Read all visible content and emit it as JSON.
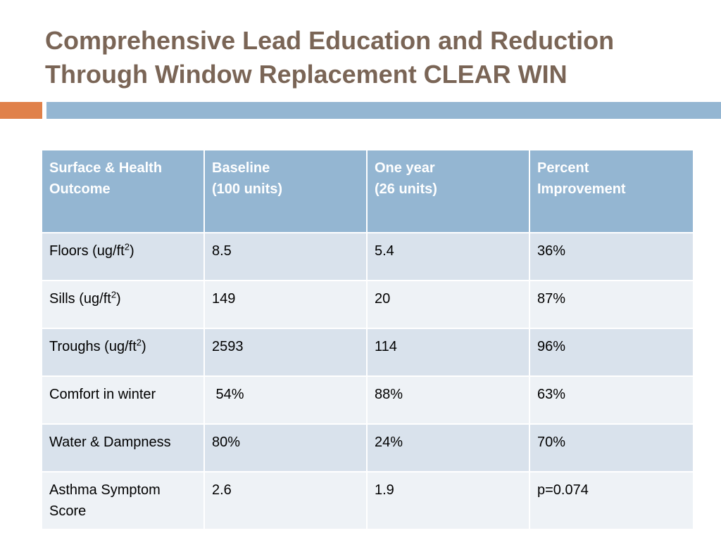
{
  "slide": {
    "title_lines": [
      "Comprehensive Lead Education and Reduction",
      "Through Window Replacement CLEAR WIN"
    ],
    "accent_color": "#e0814a",
    "header_color": "#94b6d2"
  },
  "table": {
    "headers": [
      [
        "Surface & Health",
        "Outcome"
      ],
      [
        "Baseline",
        "(100 units)"
      ],
      [
        "One year",
        "(26 units)"
      ],
      [
        "Percent",
        "Improvement"
      ]
    ],
    "rows": [
      {
        "outcome": "Floors (ug/ft",
        "sup": "2",
        "suffix": ")",
        "baseline": "8.5",
        "one_year": "5.4",
        "improvement": "36%"
      },
      {
        "outcome": "Sills (ug/ft",
        "sup": "2",
        "suffix": ")",
        "baseline": "149",
        "one_year": "20",
        "improvement": "87%"
      },
      {
        "outcome": "Troughs (ug/ft",
        "sup": "2",
        "suffix": ")",
        "baseline": "2593",
        "one_year": "114",
        "improvement": "96%"
      },
      {
        "outcome": "Comfort in winter",
        "baseline": " 54%",
        "one_year": "88%",
        "improvement": "63%"
      },
      {
        "outcome": "Water & Dampness",
        "baseline": "80%",
        "one_year": "24%",
        "improvement": "70%"
      },
      {
        "outcome": "Asthma Symptom Score",
        "baseline": "2.6",
        "one_year": "1.9",
        "improvement": "p=0.074"
      }
    ]
  }
}
